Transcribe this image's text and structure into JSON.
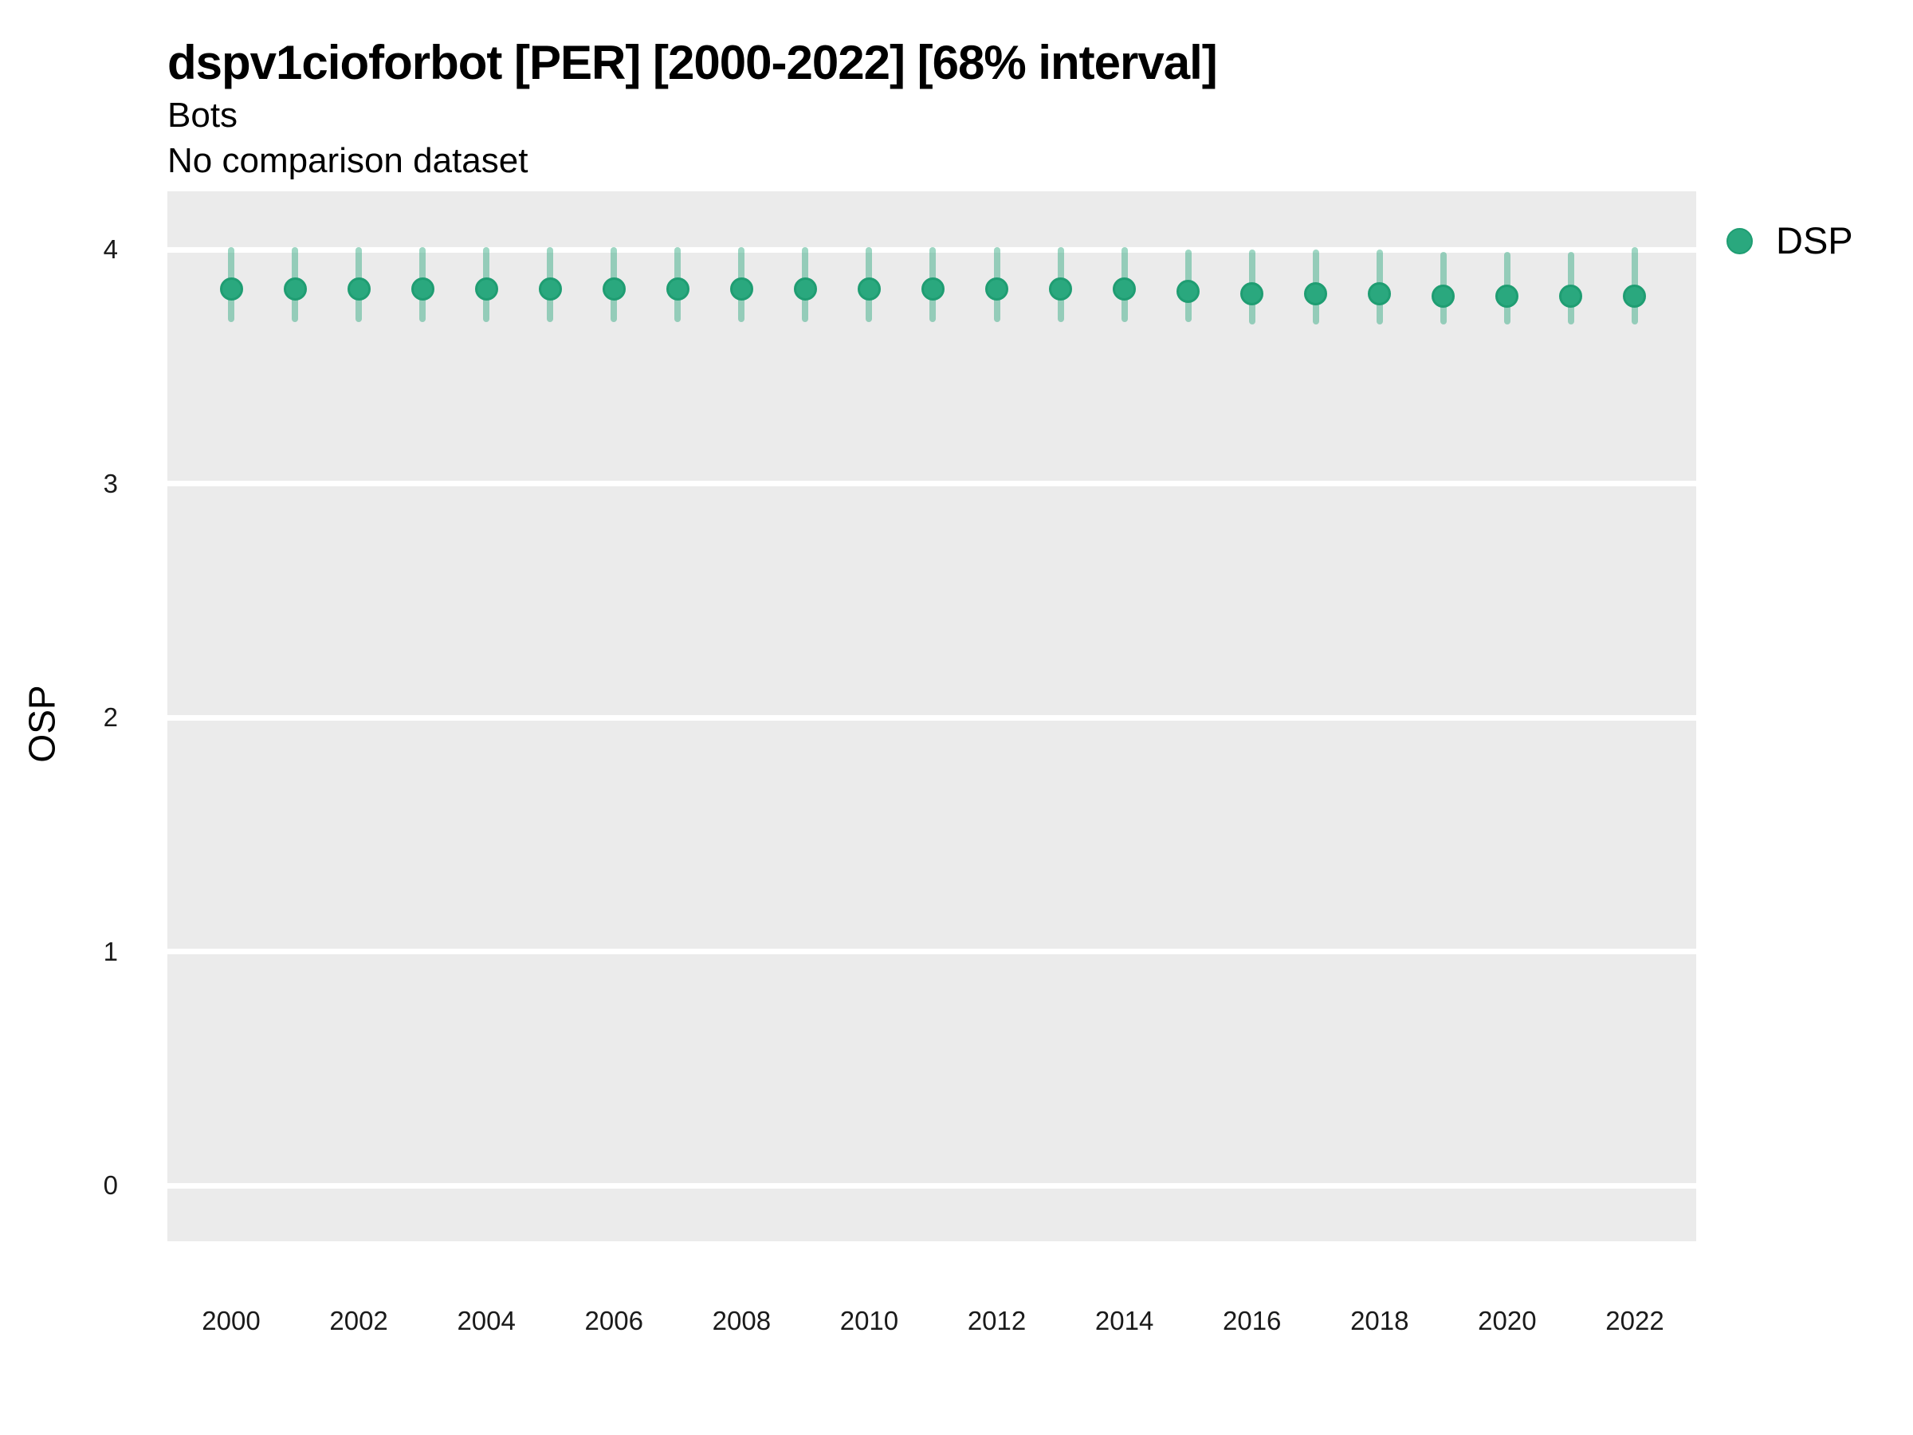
{
  "header": {
    "title": "dspv1cioforbot [PER] [2000-2022] [68% interval]",
    "subtitle": "Bots",
    "note": "No comparison dataset"
  },
  "legend": {
    "position": "right",
    "entries": [
      {
        "label": "DSP",
        "swatch": "circle",
        "color": "#2aa87e"
      }
    ]
  },
  "colors": {
    "point_fill": "#2aa87e",
    "point_border": "#1f9d72",
    "interval_bar": "rgba(42,167,125,0.45)",
    "panel_background": "#ebebeb",
    "gridline": "#ffffff",
    "tick_text": "#1a1a1a",
    "text": "#000000"
  },
  "chart_data": {
    "type": "scatter",
    "title": "dspv1cioforbot [PER] [2000-2022] [68% interval]",
    "subtitle": "Bots",
    "note": "No comparison dataset",
    "xlabel": "",
    "ylabel": "OSP",
    "interval_label": "68% interval",
    "xlim": [
      1999,
      2022.96
    ],
    "ylim": [
      -0.25,
      4.25
    ],
    "y_ticks": [
      4,
      3,
      2,
      1,
      0
    ],
    "x_ticks": [
      2000,
      2002,
      2004,
      2006,
      2008,
      2010,
      2012,
      2014,
      2016,
      2018,
      2020,
      2022
    ],
    "grid": "horizontal-major-only",
    "legend_position": "right",
    "series": [
      {
        "name": "DSP",
        "color": "#2aa87e",
        "x": [
          2000,
          2001,
          2002,
          2003,
          2004,
          2005,
          2006,
          2007,
          2008,
          2009,
          2010,
          2011,
          2012,
          2013,
          2014,
          2015,
          2016,
          2017,
          2018,
          2019,
          2020,
          2021,
          2022
        ],
        "y": [
          3.83,
          3.83,
          3.83,
          3.83,
          3.83,
          3.83,
          3.83,
          3.83,
          3.83,
          3.83,
          3.83,
          3.83,
          3.83,
          3.83,
          3.83,
          3.82,
          3.81,
          3.81,
          3.81,
          3.8,
          3.8,
          3.8,
          3.8
        ],
        "y_lo": [
          3.69,
          3.69,
          3.69,
          3.69,
          3.69,
          3.69,
          3.69,
          3.69,
          3.69,
          3.69,
          3.69,
          3.69,
          3.69,
          3.69,
          3.69,
          3.69,
          3.68,
          3.68,
          3.68,
          3.68,
          3.68,
          3.68,
          3.68
        ],
        "y_hi": [
          4.01,
          4.01,
          4.01,
          4.01,
          4.01,
          4.01,
          4.01,
          4.01,
          4.01,
          4.01,
          4.01,
          4.01,
          4.01,
          4.01,
          4.01,
          4.0,
          4.0,
          4.0,
          4.0,
          3.99,
          3.99,
          3.99,
          4.01
        ]
      }
    ]
  }
}
